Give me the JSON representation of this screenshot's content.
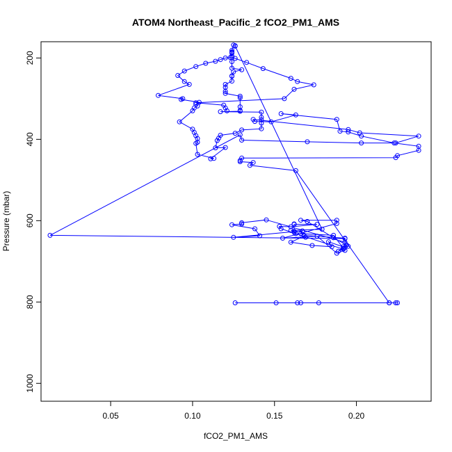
{
  "chart_data": {
    "type": "line",
    "title": "ATOM4 Northeast_Pacific_2 fCO2_PM1_AMS",
    "xlabel": "fCO2_PM1_AMS",
    "ylabel": "Pressure (mbar)",
    "xlim": [
      0.0075,
      0.2456
    ],
    "ylim": [
      1044,
      160
    ],
    "y_inverted": true,
    "grid": false,
    "x_ticks": [
      0.05,
      0.1,
      0.15,
      0.2
    ],
    "x_tick_labels": [
      "0.05",
      "0.10",
      "0.15",
      "0.20"
    ],
    "y_ticks": [
      200,
      400,
      600,
      800,
      1000
    ],
    "y_tick_labels": [
      "200",
      "400",
      "600",
      "800",
      "1000"
    ],
    "series": [
      {
        "color": "#0000ff",
        "marker": "open-circle",
        "x": [
          0.126,
          0.151,
          0.164,
          0.166,
          0.177,
          0.22,
          0.224,
          0.225,
          0.22,
          0.163,
          0.135,
          0.137,
          0.129,
          0.129,
          0.13,
          0.224,
          0.225,
          0.238,
          0.238,
          0.223,
          0.203,
          0.195,
          0.19,
          0.188,
          0.154,
          0.163,
          0.148,
          0.138,
          0.137,
          0.195,
          0.202,
          0.238,
          0.224,
          0.203,
          0.17,
          0.13,
          0.129,
          0.013,
          0.193,
          0.193,
          0.183,
          0.185,
          0.173,
          0.16,
          0.168,
          0.169,
          0.168,
          0.193,
          0.193,
          0.145,
          0.13,
          0.13,
          0.124,
          0.138,
          0.141,
          0.125,
          0.167,
          0.166,
          0.186,
          0.193,
          0.188,
          0.176,
          0.155,
          0.188,
          0.188,
          0.166,
          0.17,
          0.186,
          0.194,
          0.195,
          0.189,
          0.192,
          0.192,
          0.192,
          0.154,
          0.153,
          0.16,
          0.176,
          0.162,
          0.162,
          0.162,
          0.163,
          0.162,
          0.16,
          0.179,
          0.126,
          0.126,
          0.125,
          0.124,
          0.124,
          0.124,
          0.124,
          0.124,
          0.124,
          0.124,
          0.124,
          0.13,
          0.125,
          0.124,
          0.124,
          0.124,
          0.12,
          0.12,
          0.12,
          0.12,
          0.129,
          0.129,
          0.129,
          0.129,
          0.129,
          0.117,
          0.142,
          0.142,
          0.142,
          0.142,
          0.142,
          0.13,
          0.126,
          0.117,
          0.116,
          0.115,
          0.114,
          0.12,
          0.111,
          0.113,
          0.103,
          0.102,
          0.103,
          0.103,
          0.102,
          0.101,
          0.1,
          0.092,
          0.1,
          0.101,
          0.103,
          0.102,
          0.104,
          0.093,
          0.094,
          0.079,
          0.098,
          0.095,
          0.091,
          0.095,
          0.102,
          0.108,
          0.114,
          0.117,
          0.12,
          0.123,
          0.126,
          0.133,
          0.143,
          0.16,
          0.164,
          0.174,
          0.162,
          0.156,
          0.102,
          0.119,
          0.12,
          0.121
        ],
        "y": [
          802,
          802,
          802,
          802,
          802,
          802,
          802,
          802,
          802,
          477,
          464,
          457,
          455,
          452,
          446,
          445,
          440,
          427,
          417,
          409,
          392,
          382,
          380,
          351,
          337,
          340,
          357,
          356,
          351,
          376,
          384,
          392,
          409,
          409,
          406,
          402,
          389,
          636,
          644,
          666,
          652,
          664,
          661,
          653,
          638,
          641,
          636,
          643,
          653,
          598,
          605,
          608,
          610,
          620,
          637,
          641,
          625,
          632,
          636,
          673,
          680,
          638,
          643,
          607,
          599,
          599,
          602,
          642,
          660,
          663,
          675,
          664,
          668,
          670,
          620,
          614,
          615,
          609,
          609,
          608,
          629,
          632,
          626,
          624,
          621,
          171,
          170,
          168,
          181,
          185,
          186,
          188,
          195,
          199,
          209,
          225,
          229,
          234,
          244,
          245,
          257,
          265,
          272,
          282,
          287,
          294,
          298,
          320,
          329,
          331,
          332,
          333,
          346,
          352,
          360,
          374,
          377,
          385,
          390,
          397,
          403,
          421,
          420,
          448,
          447,
          437,
          410,
          407,
          398,
          391,
          383,
          375,
          357,
          330,
          323,
          318,
          314,
          309,
          302,
          300,
          292,
          265,
          258,
          243,
          232,
          221,
          213,
          208,
          204,
          200,
          199,
          201,
          211,
          226,
          250,
          258,
          266,
          277,
          300,
          310,
          316,
          323,
          330
        ]
      }
    ]
  }
}
